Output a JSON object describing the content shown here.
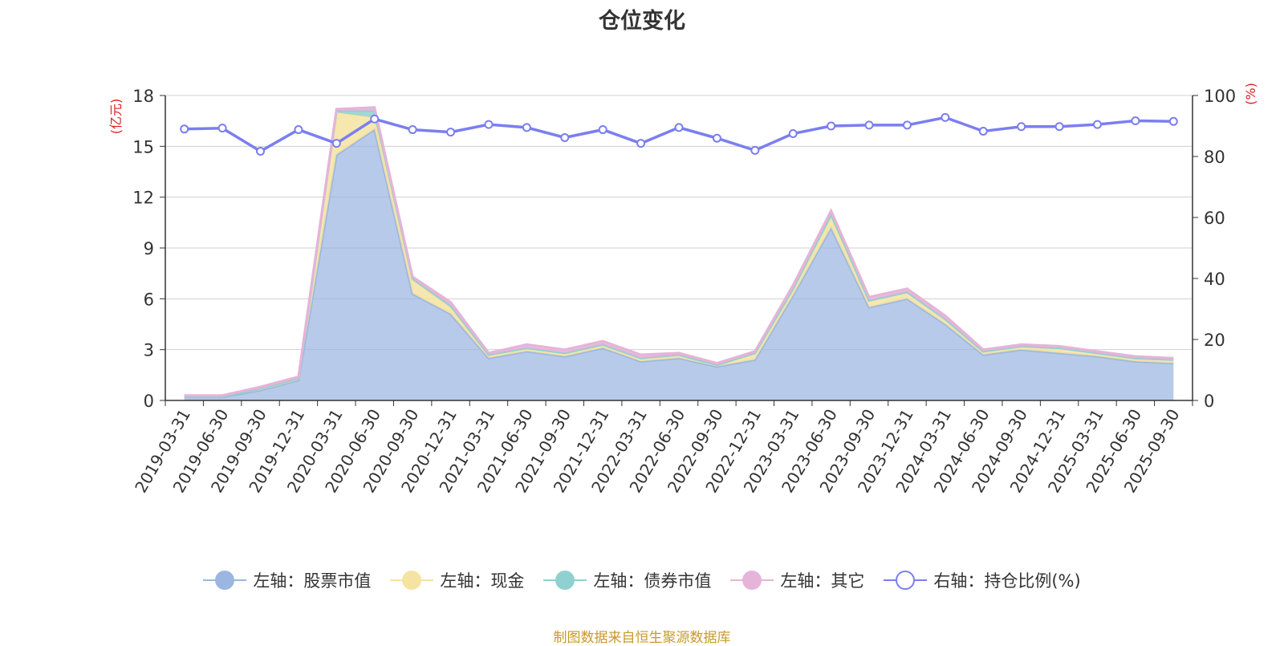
{
  "chart_data": {
    "type": "area",
    "title": "仓位变化",
    "left_axis_unit": "(亿元)",
    "right_axis_unit": "(%)",
    "ylim_left": [
      0,
      18
    ],
    "ylim_right": [
      0,
      100
    ],
    "yticks_left": [
      "0",
      "3",
      "6",
      "9",
      "12",
      "15",
      "18"
    ],
    "yticks_right": [
      "0",
      "20",
      "40",
      "60",
      "80",
      "100"
    ],
    "grid": true,
    "legend_position": "bottom",
    "categories": [
      "2019-03-31",
      "2019-06-30",
      "2019-09-30",
      "2019-12-31",
      "2020-03-31",
      "2020-06-30",
      "2020-09-30",
      "2020-12-31",
      "2021-03-31",
      "2021-06-30",
      "2021-09-30",
      "2021-12-31",
      "2022-03-31",
      "2022-06-30",
      "2022-09-30",
      "2022-12-31",
      "2023-03-31",
      "2023-06-30",
      "2023-09-30",
      "2023-12-31",
      "2024-03-31",
      "2024-06-30",
      "2024-09-30",
      "2024-12-31",
      "2025-03-31",
      "2025-06-30",
      "2025-09-30"
    ],
    "series": [
      {
        "name": "左轴：股票市值",
        "axis": "left",
        "color": "#9bb6e0",
        "values": [
          0.2,
          0.2,
          0.6,
          1.2,
          14.5,
          16.0,
          6.3,
          5.1,
          2.5,
          2.9,
          2.6,
          3.1,
          2.3,
          2.5,
          2.0,
          2.4,
          6.2,
          10.2,
          5.5,
          6.0,
          4.5,
          2.7,
          3.0,
          2.8,
          2.6,
          2.3,
          2.2
        ]
      },
      {
        "name": "左轴：现金",
        "axis": "left",
        "color": "#f5e3a1",
        "values": [
          0.05,
          0.05,
          0.1,
          0.1,
          2.5,
          0.7,
          0.8,
          0.4,
          0.2,
          0.2,
          0.2,
          0.2,
          0.2,
          0.2,
          0.1,
          0.4,
          0.3,
          0.6,
          0.4,
          0.4,
          0.3,
          0.2,
          0.2,
          0.3,
          0.2,
          0.2,
          0.2
        ]
      },
      {
        "name": "左轴：债券市值",
        "axis": "left",
        "color": "#8fd1d0",
        "values": [
          0,
          0,
          0,
          0,
          0.1,
          0.4,
          0.1,
          0.1,
          0,
          0,
          0,
          0,
          0,
          0,
          0,
          0,
          0.1,
          0.2,
          0,
          0,
          0,
          0,
          0,
          0,
          0,
          0,
          0
        ]
      },
      {
        "name": "左轴：其它",
        "axis": "left",
        "color": "#e6b3d9",
        "values": [
          0.05,
          0.05,
          0.1,
          0.1,
          0.1,
          0.2,
          0.1,
          0.2,
          0.1,
          0.2,
          0.2,
          0.2,
          0.2,
          0.1,
          0.1,
          0.1,
          0.2,
          0.2,
          0.2,
          0.2,
          0.2,
          0.1,
          0.1,
          0.1,
          0.1,
          0.1,
          0.1
        ]
      },
      {
        "name": "右轴：持仓比例(%)",
        "axis": "right",
        "color": "#7b7ef0",
        "values": [
          89,
          89.3,
          81.7,
          88.8,
          84.3,
          92.3,
          88.8,
          88,
          90.5,
          89.5,
          86.2,
          88.8,
          84.3,
          89.5,
          86,
          82,
          87.5,
          90,
          90.3,
          90.3,
          92.8,
          88.3,
          89.8,
          89.8,
          90.5,
          91.7,
          91.5
        ]
      }
    ],
    "source_note": "制图数据来自恒生聚源数据库"
  }
}
